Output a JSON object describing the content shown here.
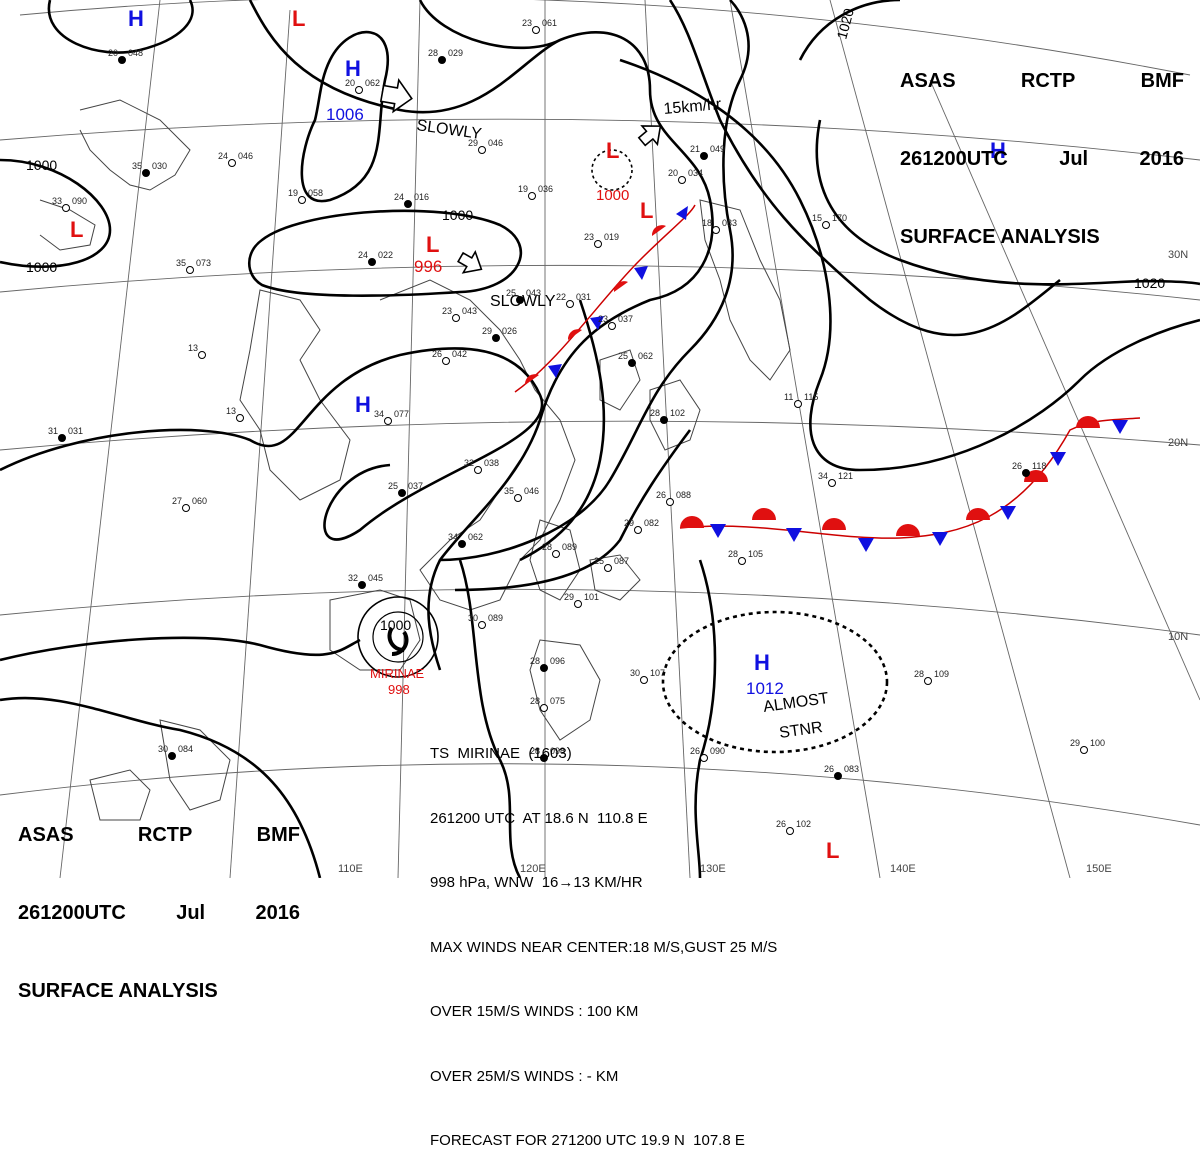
{
  "header": {
    "agency": [
      "ASAS",
      "RCTP",
      "BMF"
    ],
    "time": [
      "261200UTC",
      "Jul",
      "2016"
    ],
    "type": "SURFACE ANALYSIS"
  },
  "pressure_centers": [
    {
      "kind": "H",
      "pressure": "1006"
    },
    {
      "kind": "L",
      "pressure": "996"
    },
    {
      "kind": "L",
      "pressure": "1000"
    },
    {
      "kind": "H",
      "pressure": "1012"
    },
    {
      "kind": "H",
      "pressure": ""
    },
    {
      "kind": "H",
      "pressure": ""
    },
    {
      "kind": "H",
      "pressure": ""
    },
    {
      "kind": "L",
      "pressure": ""
    },
    {
      "kind": "L",
      "pressure": ""
    },
    {
      "kind": "L",
      "pressure": ""
    },
    {
      "kind": "L",
      "pressure": ""
    }
  ],
  "isobar_labels": [
    "1000",
    "1000",
    "1000",
    "1020",
    "1020",
    "1000"
  ],
  "movement_labels": [
    "SLOWLY",
    "SLOWLY",
    "15km/hr",
    "ALMOST",
    "STNR"
  ],
  "storm": {
    "name": "MIRINAE",
    "pressure": "998",
    "info": [
      "TS  MIRINAE  (1603)",
      "261200 UTC  AT 18.6 N  110.8 E",
      "998 hPa, WNW  16→13 KM/HR",
      "MAX WINDS NEAR CENTER:18 M/S,GUST 25 M/S",
      "OVER 15M/S WINDS : 100 KM",
      "OVER 25M/S WINDS : - KM",
      "FORECAST FOR 271200 UTC 19.9 N  107.8 E"
    ]
  },
  "grid_labels": {
    "lat": [
      "30N",
      "20N",
      "10N"
    ],
    "lon": [
      "110E",
      "120E",
      "130E",
      "140E",
      "150E"
    ]
  },
  "stations": [
    {
      "t": "20",
      "p": "048"
    },
    {
      "t": "23",
      "p": "061"
    },
    {
      "t": "20",
      "p": "062"
    },
    {
      "t": "28",
      "p": "029"
    },
    {
      "t": "29",
      "p": "046"
    },
    {
      "t": "24",
      "p": "046"
    },
    {
      "t": "35",
      "p": "030"
    },
    {
      "t": "33",
      "p": "090"
    },
    {
      "t": "19",
      "p": "058"
    },
    {
      "t": "24",
      "p": "016"
    },
    {
      "t": "20",
      "p": "034"
    },
    {
      "t": "19",
      "p": "036"
    },
    {
      "t": "24",
      "p": "022"
    },
    {
      "t": "23",
      "p": "019"
    },
    {
      "t": "35",
      "p": "073"
    },
    {
      "t": "25",
      "p": "043"
    },
    {
      "t": "23",
      "p": "043"
    },
    {
      "t": "22",
      "p": "031"
    },
    {
      "t": "29",
      "p": "026"
    },
    {
      "t": "23",
      "p": "037"
    },
    {
      "t": "26",
      "p": "042"
    },
    {
      "t": "25",
      "p": "062"
    },
    {
      "t": "13",
      "p": ""
    },
    {
      "t": "13",
      "p": ""
    },
    {
      "t": "31",
      "p": "031"
    },
    {
      "t": "34",
      "p": "077"
    },
    {
      "t": "32",
      "p": "038"
    },
    {
      "t": "25",
      "p": "037"
    },
    {
      "t": "35",
      "p": "046"
    },
    {
      "t": "27",
      "p": "060"
    },
    {
      "t": "34",
      "p": "062"
    },
    {
      "t": "28",
      "p": "089"
    },
    {
      "t": "25",
      "p": "087"
    },
    {
      "t": "32",
      "p": "045"
    },
    {
      "t": "30",
      "p": "089"
    },
    {
      "t": "29",
      "p": "101"
    },
    {
      "t": "28",
      "p": "096"
    },
    {
      "t": "30",
      "p": "107"
    },
    {
      "t": "28",
      "p": "075"
    },
    {
      "t": "28",
      "p": "098"
    },
    {
      "t": "28",
      "p": "105"
    },
    {
      "t": "29",
      "p": "082"
    },
    {
      "t": "26",
      "p": "083"
    },
    {
      "t": "26",
      "p": "102"
    },
    {
      "t": "28",
      "p": "109"
    },
    {
      "t": "26",
      "p": "118"
    },
    {
      "t": "34",
      "p": "121"
    },
    {
      "t": "29",
      "p": "100"
    },
    {
      "t": "30",
      "p": "084"
    },
    {
      "t": "18",
      "p": "083"
    },
    {
      "t": "15",
      "p": "170"
    },
    {
      "t": "21",
      "p": "049"
    },
    {
      "t": "26",
      "p": "088"
    },
    {
      "t": "26",
      "p": "090"
    },
    {
      "t": "28",
      "p": "102"
    },
    {
      "t": "11",
      "p": "115"
    }
  ],
  "colors": {
    "high": "#1010e0",
    "low": "#e01010",
    "isobar": "#000000",
    "grid": "#606060",
    "coast": "#404040",
    "warm_front": "#e01010",
    "cold_front": "#1010e0"
  }
}
